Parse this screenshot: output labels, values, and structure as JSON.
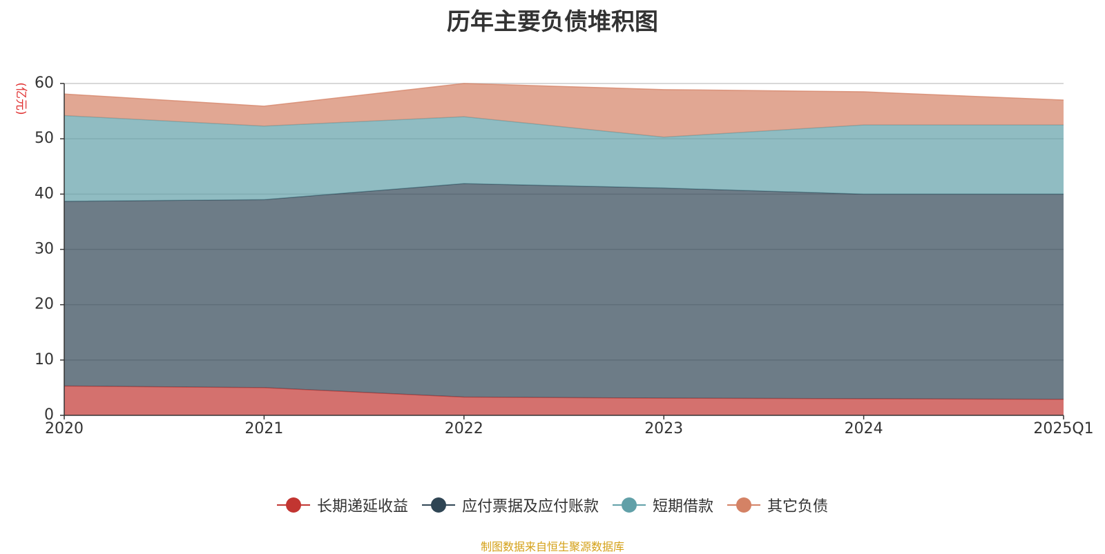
{
  "chart_data": {
    "type": "area",
    "stacked": true,
    "title": "历年主要负债堆积图",
    "ylabel": "(亿元)",
    "xlabel": "",
    "categories": [
      "2020",
      "2021",
      "2022",
      "2023",
      "2024",
      "2025Q1"
    ],
    "ylim": [
      0,
      60
    ],
    "yticks": [
      0,
      10,
      20,
      30,
      40,
      50,
      60
    ],
    "grid": true,
    "legend_position": "bottom",
    "series": [
      {
        "name": "长期递延收益",
        "color": "#c23531",
        "values": [
          5.3,
          5.0,
          3.3,
          3.1,
          3.0,
          2.9
        ]
      },
      {
        "name": "应付票据及应付账款",
        "color": "#2f4554",
        "values": [
          33.4,
          34.0,
          38.6,
          38.0,
          37.0,
          37.1
        ]
      },
      {
        "name": "短期借款",
        "color": "#61a0a8",
        "values": [
          15.5,
          13.3,
          12.1,
          9.2,
          12.5,
          12.5
        ]
      },
      {
        "name": "其它负债",
        "color": "#d48265",
        "values": [
          3.9,
          3.6,
          6.0,
          8.6,
          6.0,
          4.5
        ]
      }
    ]
  },
  "source": "制图数据来自恒生聚源数据库"
}
